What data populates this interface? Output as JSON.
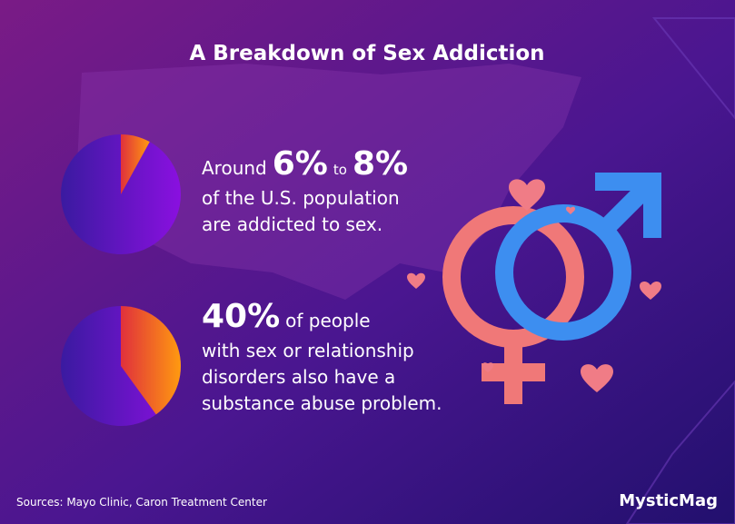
{
  "title": "A Breakdown of Sex Addiction",
  "facts": [
    {
      "pie_value": 8,
      "lines": [
        [
          "Around",
          "6%",
          "to",
          "8%"
        ],
        [
          "of the U.S. population"
        ],
        [
          "are addicted to sex."
        ]
      ]
    },
    {
      "pie_value": 40,
      "lines": [
        [
          "40%",
          "of people"
        ],
        [
          "with sex or relationship"
        ],
        [
          "disorders also have a"
        ],
        [
          "substance abuse problem."
        ]
      ]
    }
  ],
  "sources": "Sources: Mayo Clinic, Caron Treatment Center",
  "brand": "MysticMag"
}
